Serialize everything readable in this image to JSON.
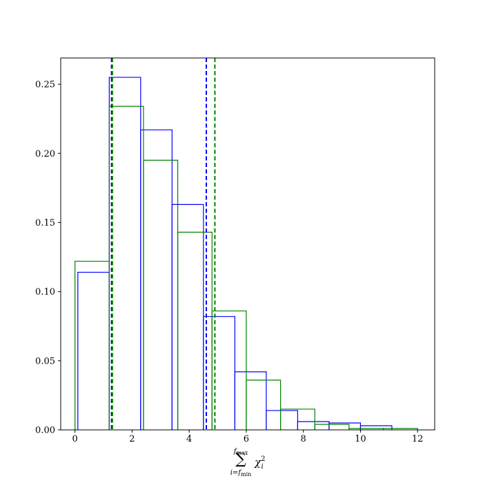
{
  "chart_data": {
    "type": "histogram-step",
    "xlim": [
      -0.5,
      12.6
    ],
    "ylim": [
      0,
      0.269
    ],
    "xticks": [
      0,
      2,
      4,
      6,
      8,
      10,
      12
    ],
    "yticks": [
      0.0,
      0.05,
      0.1,
      0.15,
      0.2,
      0.25
    ],
    "xtick_labels": [
      "0",
      "2",
      "4",
      "6",
      "8",
      "10",
      "12"
    ],
    "ytick_labels": [
      "0.00",
      "0.05",
      "0.10",
      "0.15",
      "0.20",
      "0.25"
    ],
    "xlabel": {
      "sum_symbol": "∑",
      "upper_base": "f",
      "upper_sub": "max",
      "lower_base": "i=f",
      "lower_sub": "min",
      "term_base": "χ",
      "term_sup": "2",
      "term_sub": "i"
    },
    "grid": false,
    "series": [
      {
        "color": "#0000ff",
        "edges": [
          0.1,
          1.2,
          2.3,
          3.4,
          4.5,
          5.6,
          6.7,
          7.8,
          8.9,
          10.0,
          11.1
        ],
        "values": [
          0.114,
          0.255,
          0.217,
          0.163,
          0.082,
          0.042,
          0.014,
          0.006,
          0.005,
          0.003
        ]
      },
      {
        "color": "#008000",
        "edges": [
          0.0,
          1.2,
          2.4,
          3.6,
          4.8,
          6.0,
          7.2,
          8.4,
          9.6,
          10.8,
          12.0
        ],
        "values": [
          0.122,
          0.234,
          0.195,
          0.143,
          0.086,
          0.036,
          0.015,
          0.004,
          0.001,
          0.001
        ]
      }
    ],
    "vlines": [
      {
        "x": 1.28,
        "color": "#0000ff"
      },
      {
        "x": 1.31,
        "color": "#008000"
      },
      {
        "x": 4.6,
        "color": "#0000ff"
      },
      {
        "x": 4.9,
        "color": "#008000"
      }
    ]
  }
}
